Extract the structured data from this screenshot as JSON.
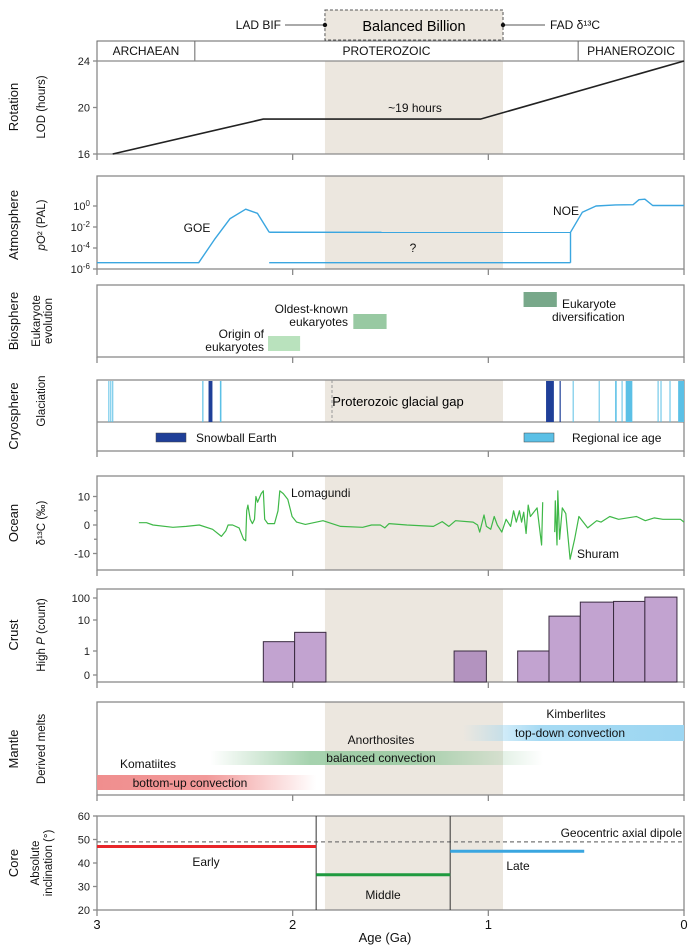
{
  "header": {
    "balanced_billion": "Balanced Billion",
    "lad_bif": "LAD BIF",
    "fad_d13c": "FAD δ¹³C",
    "balanced_billion_range_ga": [
      1.835,
      0.925
    ],
    "eons": [
      {
        "name": "ARCHAEAN",
        "from": 3.0,
        "to": 2.5
      },
      {
        "name": "PROTEROZOIC",
        "from": 2.5,
        "to": 0.541
      },
      {
        "name": "PHANEROZOIC",
        "from": 0.541,
        "to": 0.0
      }
    ],
    "shade_color": "#ece7df"
  },
  "xaxis": {
    "label": "Age (Ga)",
    "ticks": [
      "3",
      "2",
      "1",
      "0"
    ],
    "range": [
      3,
      0
    ]
  },
  "chart_data": [
    {
      "type": "line",
      "panel": "Rotation",
      "ylabel": "LOD (hours)",
      "ylim": [
        16,
        24
      ],
      "yticks": [
        "16",
        "20",
        "24"
      ],
      "annotation": "~19 hours",
      "color": "#222222",
      "points": [
        [
          2.92,
          16
        ],
        [
          2.15,
          19
        ],
        [
          1.04,
          19
        ],
        [
          0.0,
          24
        ]
      ]
    },
    {
      "type": "line",
      "panel": "Atmosphere",
      "ylabel": "pO² (PAL)",
      "ylabel_italic": "p",
      "ylabel_rest": "O² (PAL)",
      "ylim_log10": [
        -6,
        1.4
      ],
      "yticks": [
        {
          "base": "10",
          "exp": "0"
        },
        {
          "base": "10",
          "exp": "-2"
        },
        {
          "base": "10",
          "exp": "-4"
        },
        {
          "base": "10",
          "exp": "-6"
        }
      ],
      "labels": {
        "goe": "GOE",
        "noe": "NOE",
        "unknown": "?"
      },
      "color": "#3aa6e0",
      "goe_curve": [
        [
          3.0,
          -5.4
        ],
        [
          2.48,
          -5.4
        ],
        [
          2.4,
          -3.2
        ],
        [
          2.32,
          -1.2
        ],
        [
          2.24,
          -0.3
        ],
        [
          2.18,
          -0.7
        ],
        [
          2.12,
          -2.5
        ]
      ],
      "band_upper": [
        [
          2.12,
          -2.5
        ],
        [
          0.58,
          -2.5
        ]
      ],
      "band_lower": [
        [
          2.12,
          -5.4
        ],
        [
          0.58,
          -5.4
        ]
      ],
      "noe_curve": [
        [
          0.58,
          -5.4
        ],
        [
          0.58,
          -2.5
        ],
        [
          0.52,
          -0.6
        ],
        [
          0.45,
          0.0
        ],
        [
          0.35,
          0.1
        ],
        [
          0.26,
          0.12
        ],
        [
          0.23,
          0.6
        ],
        [
          0.2,
          0.65
        ],
        [
          0.16,
          0.05
        ],
        [
          0.0,
          0.05
        ]
      ]
    },
    {
      "type": "ranges",
      "panel": "Biosphere",
      "ylabel": "Eukaryote evolution",
      "ylabel_lines": [
        "Eukaryote",
        "evolution"
      ],
      "items": [
        {
          "label_lines": [
            "Origin of",
            "eukaryotes"
          ],
          "from": 2.126,
          "to": 1.962,
          "color": "#b9e2bd",
          "level": 1
        },
        {
          "label_lines": [
            "Oldest-known",
            "eukaryotes"
          ],
          "from": 1.69,
          "to": 1.52,
          "color": "#98c9a2",
          "level": 2
        },
        {
          "label_lines": [
            "Eukaryote",
            "diversification"
          ],
          "from": 0.82,
          "to": 0.65,
          "color": "#78a88a",
          "level": 3
        }
      ]
    },
    {
      "type": "events",
      "panel": "Cryosphere",
      "ylabel": "Glaciation",
      "gap_label": "Proterozoic glacial gap",
      "legend": [
        {
          "label": "Snowball Earth",
          "color": "#1f3f98"
        },
        {
          "label": "Regional ice age",
          "color": "#5bc0e6"
        }
      ],
      "snowball": [
        [
          2.43,
          2.41
        ],
        [
          0.705,
          0.665
        ],
        [
          0.636,
          0.632
        ]
      ],
      "regional": [
        [
          2.942,
          2.938
        ],
        [
          2.932,
          2.928
        ],
        [
          2.922,
          2.918
        ],
        [
          2.462,
          2.456
        ],
        [
          2.372,
          2.364
        ],
        [
          0.569,
          0.565
        ],
        [
          0.436,
          0.432
        ],
        [
          0.352,
          0.344
        ],
        [
          0.319,
          0.315
        ],
        [
          0.298,
          0.264
        ],
        [
          0.135,
          0.131
        ],
        [
          0.12,
          0.116
        ],
        [
          0.074,
          0.07
        ],
        [
          0.03,
          0.0
        ]
      ]
    },
    {
      "type": "line",
      "panel": "Ocean",
      "ylabel": "δ¹³C (‰)",
      "ylim": [
        -20,
        15.5
      ],
      "yticks": [
        "10",
        "0",
        "-10"
      ],
      "labels": {
        "lomagundi": "Lomagundi",
        "shuram": "Shuram"
      },
      "color": "#3fb848",
      "segments": [
        [
          [
            2.786,
            0.8
          ],
          [
            2.747,
            0.8
          ],
          [
            2.714,
            0
          ],
          [
            2.612,
            -0.8
          ],
          [
            2.544,
            -0.5
          ],
          [
            2.477,
            0
          ],
          [
            2.409,
            -1.5
          ],
          [
            2.364,
            -4
          ],
          [
            2.341,
            -2
          ],
          [
            2.33,
            0
          ],
          [
            2.307,
            0
          ],
          [
            2.274,
            -1
          ],
          [
            2.251,
            -5
          ],
          [
            2.24,
            -5.5
          ],
          [
            2.235,
            5
          ],
          [
            2.229,
            7
          ],
          [
            2.217,
            2
          ],
          [
            2.206,
            0.5
          ],
          [
            2.195,
            2
          ],
          [
            2.188,
            10
          ],
          [
            2.179,
            8
          ],
          [
            2.161,
            11
          ],
          [
            2.15,
            12
          ],
          [
            2.143,
            2
          ],
          [
            2.127,
            0.5
          ],
          [
            2.093,
            0.5
          ],
          [
            2.075,
            5
          ],
          [
            2.066,
            12
          ],
          [
            2.048,
            11
          ],
          [
            2.025,
            9
          ],
          [
            2.003,
            3
          ],
          [
            1.98,
            1
          ],
          [
            1.935,
            0.2
          ],
          [
            1.845,
            1.5
          ],
          [
            1.755,
            -0.5
          ],
          [
            1.642,
            -0.8
          ],
          [
            1.597,
            0
          ],
          [
            1.552,
            0
          ],
          [
            1.529,
            -1
          ],
          [
            1.507,
            0.5
          ],
          [
            1.416,
            0
          ],
          [
            1.281,
            -0.5
          ],
          [
            1.236,
            1.2
          ],
          [
            1.202,
            -0.5
          ],
          [
            1.168,
            1.5
          ],
          [
            1.078,
            1
          ],
          [
            1.055,
            0
          ],
          [
            1.044,
            -2.5
          ],
          [
            1.022,
            3.5
          ],
          [
            1.01,
            -0.5
          ],
          [
            0.988,
            -1.5
          ],
          [
            0.97,
            3
          ],
          [
            0.954,
            0
          ],
          [
            0.931,
            -2.5
          ],
          [
            0.909,
            2
          ],
          [
            0.886,
            -0.5
          ],
          [
            0.871,
            5
          ],
          [
            0.857,
            1
          ],
          [
            0.841,
            5
          ],
          [
            0.83,
            1
          ],
          [
            0.819,
            4.5
          ],
          [
            0.807,
            -3
          ],
          [
            0.796,
            7
          ],
          [
            0.785,
            3
          ],
          [
            0.762,
            5
          ],
          [
            0.751,
            6
          ],
          [
            0.728,
            -7
          ],
          [
            0.722,
            8
          ]
        ],
        [
          [
            0.661,
            -2.5
          ],
          [
            0.658,
            8.5
          ],
          [
            0.649,
            -7
          ],
          [
            0.645,
            12
          ],
          [
            0.636,
            -5
          ],
          [
            0.622,
            6
          ],
          [
            0.604,
            4
          ],
          [
            0.582,
            -12
          ],
          [
            0.559,
            -5
          ],
          [
            0.537,
            3
          ],
          [
            0.492,
            -1
          ],
          [
            0.446,
            1.5
          ],
          [
            0.424,
            1
          ],
          [
            0.379,
            3
          ],
          [
            0.334,
            2
          ],
          [
            0.243,
            3
          ],
          [
            0.198,
            1.5
          ],
          [
            0.153,
            2.5
          ],
          [
            0.108,
            2
          ],
          [
            0.018,
            2
          ],
          [
            0.0,
            1
          ]
        ]
      ]
    },
    {
      "type": "bar",
      "panel": "Crust",
      "ylabel": "High P (count)",
      "ylabel_pre": "High ",
      "ylabel_italic": "P",
      "ylabel_post": " (count)",
      "yticks": [
        "100",
        "10",
        "1",
        "0"
      ],
      "color": "#c2a3d0",
      "bars": [
        {
          "from": 2.15,
          "to": 1.99,
          "value": 2
        },
        {
          "from": 1.99,
          "to": 1.83,
          "value": 4
        },
        {
          "from": 1.175,
          "to": 1.01,
          "value": 1
        },
        {
          "from": 0.85,
          "to": 0.69,
          "value": 1
        },
        {
          "from": 0.69,
          "to": 0.53,
          "value": 15
        },
        {
          "from": 0.53,
          "to": 0.36,
          "value": 65
        },
        {
          "from": 0.36,
          "to": 0.2,
          "value": 70
        },
        {
          "from": 0.2,
          "to": 0.036,
          "value": 110
        }
      ]
    },
    {
      "type": "ranges",
      "panel": "Mantle",
      "ylabel": "Derived melts",
      "items": [
        {
          "name": "Komatiites",
          "label": "bottom-up convection",
          "from": 3.0,
          "to": 1.88,
          "color": "#f08e8e"
        },
        {
          "name": "Anorthosites",
          "label": "balanced convection",
          "from": 2.42,
          "to": 0.72,
          "color": "#8fc79a"
        },
        {
          "name": "Kimberlites",
          "label": "top-down convection",
          "from": 1.13,
          "to": 0.0,
          "color": "#9cd6f2"
        }
      ]
    },
    {
      "type": "line",
      "panel": "Core",
      "ylabel_lines": [
        "Absolute",
        "inclination (°)"
      ],
      "ylim": [
        20,
        60
      ],
      "yticks": [
        "60",
        "50",
        "40",
        "30",
        "20"
      ],
      "reference": {
        "label": "Geocentric axial dipole",
        "value": 49
      },
      "boundaries": [
        1.88,
        1.195
      ],
      "segments": [
        {
          "label": "Early",
          "from": 3.0,
          "to": 1.88,
          "value": 47,
          "color": "#e8262a"
        },
        {
          "label": "Middle",
          "from": 1.88,
          "to": 1.195,
          "value": 35,
          "color": "#1f9a3f"
        },
        {
          "label": "Late",
          "from": 1.195,
          "to": 0.51,
          "value": 45,
          "color": "#3aa6e0"
        }
      ]
    }
  ]
}
